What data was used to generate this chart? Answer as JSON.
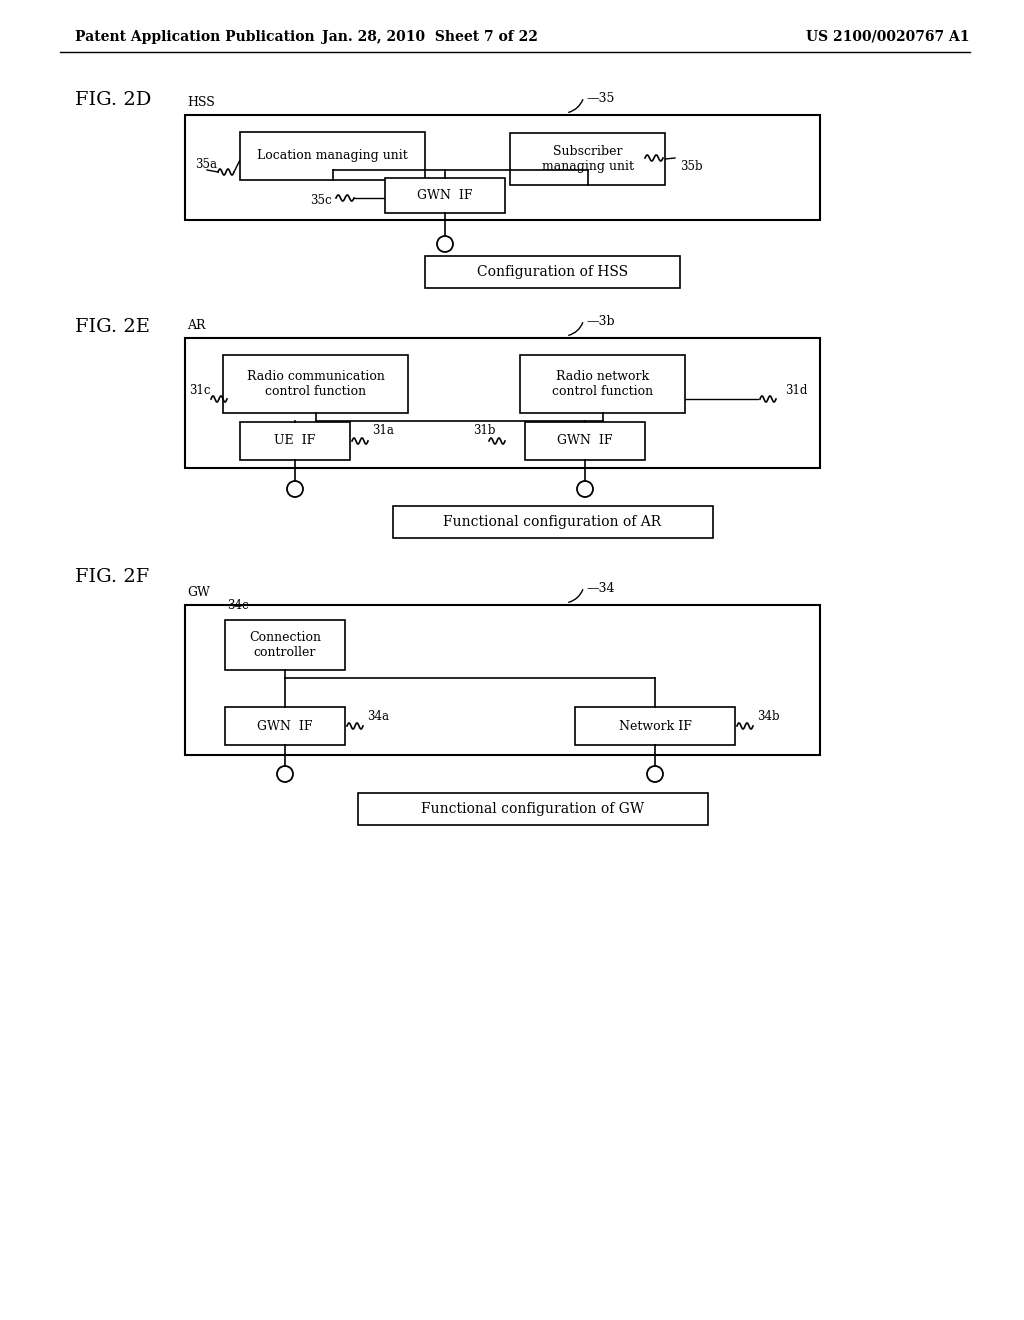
{
  "background_color": "#ffffff",
  "header_left": "Patent Application Publication",
  "header_center": "Jan. 28, 2010  Sheet 7 of 22",
  "header_right": "US 2100/0020767 A1",
  "fig2d": {
    "label": "FIG. 2D",
    "outer_label": "HSS",
    "outer_ref": "-35",
    "box_loc_label": "Location managing unit",
    "box_sub_label": "Subscriber\nmanaging unit",
    "box_gwn_label": "GWN  IF",
    "ref_35a": "35a",
    "ref_35b": "35b",
    "ref_35c": "35c",
    "caption": "Configuration of HSS"
  },
  "fig2e": {
    "label": "FIG. 2E",
    "outer_label": "AR",
    "outer_ref": "3b",
    "box_rcc_label": "Radio communication\ncontrol function",
    "box_rnc_label": "Radio network\ncontrol function",
    "box_ue_label": "UE  IF",
    "box_gwn_label": "GWN  IF",
    "ref_31a": "31a",
    "ref_31b": "31b",
    "ref_31c": "31c",
    "ref_31d": "31d",
    "caption": "Functional configuration of AR"
  },
  "fig2f": {
    "label": "FIG. 2F",
    "outer_label": "GW",
    "outer_ref": "-34",
    "box_cc_label": "Connection\ncontroller",
    "box_gwn_label": "GWN  IF",
    "box_net_label": "Network IF",
    "ref_34a": "34a",
    "ref_34b": "34b",
    "ref_34c": "34c",
    "caption": "Functional configuration of GW"
  }
}
